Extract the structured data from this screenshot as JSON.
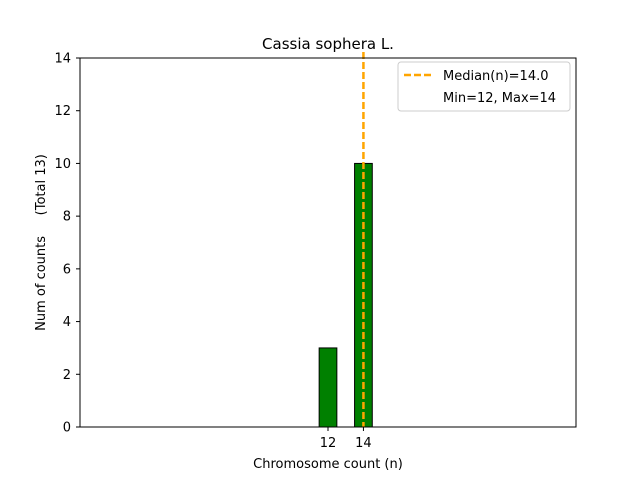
{
  "chart_data": {
    "type": "bar",
    "title": "Cassia sophera L.",
    "xlabel": "Chromosome count (n)",
    "ylabel": "Num of counts     (Total 13)",
    "x": [
      12,
      14
    ],
    "values": [
      3,
      10
    ],
    "xticks": [
      "12",
      "14"
    ],
    "yticks": [
      0,
      2,
      4,
      6,
      8,
      10,
      12,
      14
    ],
    "ylim": [
      0,
      14
    ],
    "xlim": [
      -2,
      26
    ],
    "bar_width": 1,
    "baseline_extent": [
      -2,
      18
    ],
    "median": 14.0,
    "legend": {
      "placement": "top-right",
      "entries": [
        "Median(n)=14.0",
        "Min=12, Max=14"
      ]
    },
    "colors": {
      "bar_fill": "#008000",
      "bar_edge": "#000000",
      "median_line": "#FFA500"
    },
    "grid": false
  }
}
